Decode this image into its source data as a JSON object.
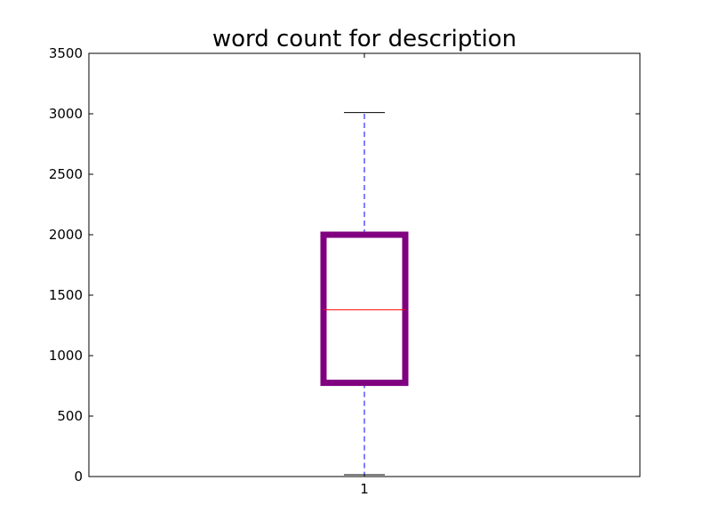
{
  "chart_data": {
    "type": "boxplot",
    "title": "word count for description",
    "xlabel": "",
    "ylabel": "",
    "ylim": [
      0,
      3500
    ],
    "yticks": [
      0,
      500,
      1000,
      1500,
      2000,
      2500,
      3000,
      3500
    ],
    "categories": [
      "1"
    ],
    "boxes": [
      {
        "label": "1",
        "whisker_low": 15,
        "q1": 775,
        "median": 1380,
        "q3": 2000,
        "whisker_high": 3010
      }
    ],
    "grid": false,
    "colors": {
      "box": "#800080",
      "median": "#ff0000",
      "whisker": "#0000ff",
      "cap": "#000000",
      "axis": "#000000"
    }
  }
}
